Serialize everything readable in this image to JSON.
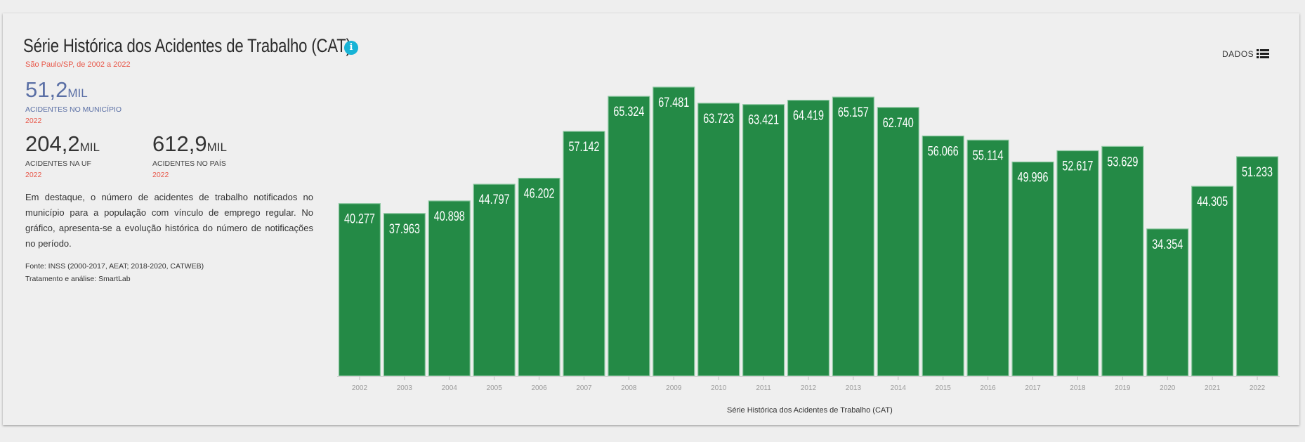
{
  "header": {
    "title": "Série Histórica dos Acidentes de Trabalho (CAT)",
    "info_icon": "info-icon",
    "subtitle": "São Paulo/SP, de 2002 a 2022"
  },
  "stats": {
    "municipio": {
      "value": "51,2",
      "unit": "MIL",
      "label": "ACIDENTES NO MUNICÍPIO",
      "year": "2022"
    },
    "uf": {
      "value": "204,2",
      "unit": "MIL",
      "label": "ACIDENTES NA UF",
      "year": "2022"
    },
    "pais": {
      "value": "612,9",
      "unit": "MIL",
      "label": "ACIDENTES NO PAÍS",
      "year": "2022"
    }
  },
  "description": "Em destaque, o número de acidentes de trabalho notificados no município para a população com vínculo de emprego regular. No gráfico, apresenta-se a evolução histórica do número de notificações no período.",
  "source": {
    "line1": "Fonte: INSS (2000-2017, AEAT; 2018-2020, CATWEB)",
    "line2": "Tratamento e análise: SmartLab"
  },
  "toolbar": {
    "dados_label": "DADOS",
    "list_icon": "list-icon"
  },
  "colors": {
    "bar": "#248a46",
    "bar_border": "#8cc7a0",
    "accent_red": "#e8584a",
    "info_blue": "#17b3d6"
  },
  "chart_data": {
    "type": "bar",
    "title": "Série Histórica dos Acidentes de Trabalho (CAT)",
    "xlabel": "Série Histórica dos Acidentes de Trabalho (CAT)",
    "ylabel": "",
    "categories": [
      "2002",
      "2003",
      "2004",
      "2005",
      "2006",
      "2007",
      "2008",
      "2009",
      "2010",
      "2011",
      "2012",
      "2013",
      "2014",
      "2015",
      "2016",
      "2017",
      "2018",
      "2019",
      "2020",
      "2021",
      "2022"
    ],
    "values": [
      40277,
      37963,
      40898,
      44797,
      46202,
      57142,
      65324,
      67481,
      63723,
      63421,
      64419,
      65157,
      62740,
      56066,
      55114,
      49996,
      52617,
      53629,
      34354,
      44305,
      51233
    ],
    "labels": [
      "40.277",
      "37.963",
      "40.898",
      "44.797",
      "46.202",
      "57.142",
      "65.324",
      "67.481",
      "63.723",
      "63.421",
      "64.419",
      "65.157",
      "62.740",
      "56.066",
      "55.114",
      "49.996",
      "52.617",
      "53.629",
      "34.354",
      "44.305",
      "51.233"
    ],
    "ylim": [
      0,
      67481
    ],
    "grid": false,
    "legend": "none"
  }
}
